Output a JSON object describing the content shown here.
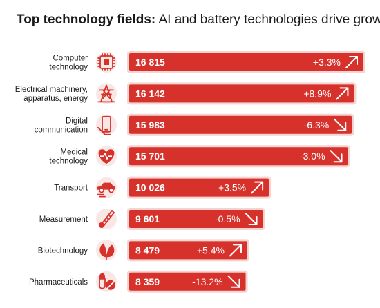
{
  "title": {
    "bold": "Top technology fields:",
    "rest": " AI and battery technologies drive growth"
  },
  "chart_data": {
    "type": "bar",
    "orientation": "horizontal",
    "categories": [
      [
        "Computer",
        "technology"
      ],
      [
        "Electrical machinery,",
        "apparatus, energy"
      ],
      [
        "Digital",
        "communication"
      ],
      [
        "Medical",
        "technology"
      ],
      [
        "Transport"
      ],
      [
        "Measurement"
      ],
      [
        "Biotechnology"
      ],
      [
        "Pharmaceuticals"
      ]
    ],
    "values": [
      16815,
      16142,
      15983,
      15701,
      10026,
      9601,
      8479,
      8359
    ],
    "value_labels": [
      "16 815",
      "16 142",
      "15 983",
      "15 701",
      "10 026",
      "9 601",
      "8 479",
      "8 359"
    ],
    "changes": [
      "+3.3%",
      "+8.9%",
      "-6.3%",
      "-3.0%",
      "+3.5%",
      "-0.5%",
      "+5.4%",
      "-13.2%"
    ],
    "trend": [
      "up",
      "up",
      "down",
      "down",
      "up",
      "down",
      "up",
      "down"
    ],
    "icons": [
      "chip-icon",
      "power-pylon-icon",
      "smartphone-icon",
      "heart-pulse-icon",
      "car-icon",
      "thermometer-icon",
      "leaf-icon",
      "pills-icon"
    ],
    "xlim": [
      0,
      16815
    ],
    "grid": false,
    "legend": "none",
    "colors": {
      "bar": "#d6312b",
      "bar_shadow": "#f4d3d1",
      "icon": "#d6312b"
    }
  }
}
